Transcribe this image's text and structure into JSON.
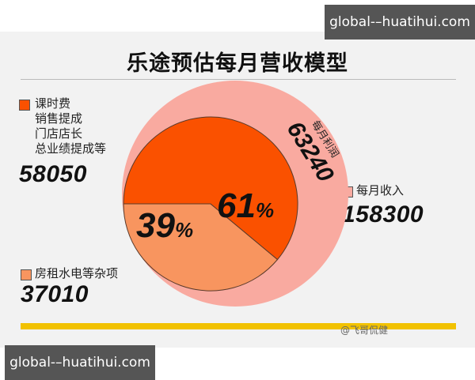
{
  "watermark": {
    "top": "global-–huatihui.com",
    "bottom": "global-–huatihui.com"
  },
  "footer_credit": "@飞哥侃健",
  "colors": {
    "outer": "#f9aaa0",
    "left_slice": "#f8955f",
    "right_slice": "#fa5100",
    "accent_bar": "#f2c200"
  },
  "chart_data": {
    "type": "pie",
    "title": "乐途预估每月营收模型",
    "total": {
      "label": "每月收入",
      "value": 158300
    },
    "profit": {
      "label": "每月利润",
      "value": 63240
    },
    "slices": [
      {
        "label": "课时费\n销售提成\n门店店长\n总业绩提成等",
        "value": 58050,
        "percent": 61,
        "percent_label": "61%"
      },
      {
        "label": "房租水电等杂项",
        "value": 37010,
        "percent": 39,
        "percent_label": "39%"
      }
    ]
  },
  "legend_values": {
    "staff": "58050",
    "rent": "37010",
    "income": "158300",
    "profit": "63240"
  }
}
